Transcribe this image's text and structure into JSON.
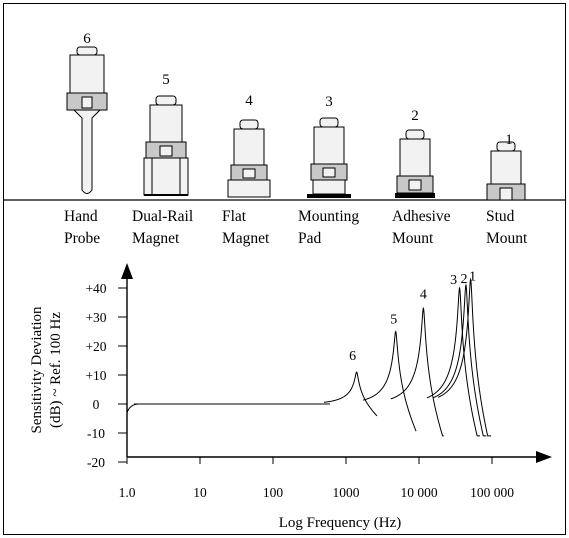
{
  "mountings": [
    {
      "number": "6",
      "line1": "Hand",
      "line2": "Probe"
    },
    {
      "number": "5",
      "line1": "Dual-Rail",
      "line2": "Magnet"
    },
    {
      "number": "4",
      "line1": "Flat",
      "line2": "Magnet"
    },
    {
      "number": "3",
      "line1": "Mounting",
      "line2": "Pad"
    },
    {
      "number": "2",
      "line1": "Adhesive",
      "line2": "Mount"
    },
    {
      "number": "1",
      "line1": "Stud",
      "line2": "Mount"
    }
  ],
  "chart_data": {
    "type": "line",
    "xscale": "log",
    "xlim": [
      1,
      100000
    ],
    "ylim": [
      -20,
      40
    ],
    "xlabel": "Log Frequency (Hz)",
    "ylabel_line1": "Sensitivity Deviation",
    "ylabel_line2": "(dB) ~ Ref. 100 Hz",
    "x_ticks": [
      1,
      10,
      100,
      1000,
      10000,
      100000
    ],
    "x_tick_labels": [
      "1.0",
      "10",
      "100",
      "1000",
      "10 000",
      "100 000"
    ],
    "y_ticks": [
      40,
      30,
      20,
      10,
      0,
      -10,
      -20
    ],
    "y_tick_labels": [
      "+40",
      "+30",
      "+20",
      "+10",
      "0",
      "-10",
      "-20"
    ],
    "series": [
      {
        "name": "6",
        "resonance_hz": 1400,
        "peak_db": 11
      },
      {
        "name": "5",
        "resonance_hz": 4800,
        "peak_db": 25
      },
      {
        "name": "4",
        "resonance_hz": 11500,
        "peak_db": 33
      },
      {
        "name": "3",
        "resonance_hz": 36000,
        "peak_db": 40
      },
      {
        "name": "2",
        "resonance_hz": 44000,
        "peak_db": 41
      },
      {
        "name": "1",
        "resonance_hz": 51000,
        "peak_db": 43
      }
    ]
  }
}
